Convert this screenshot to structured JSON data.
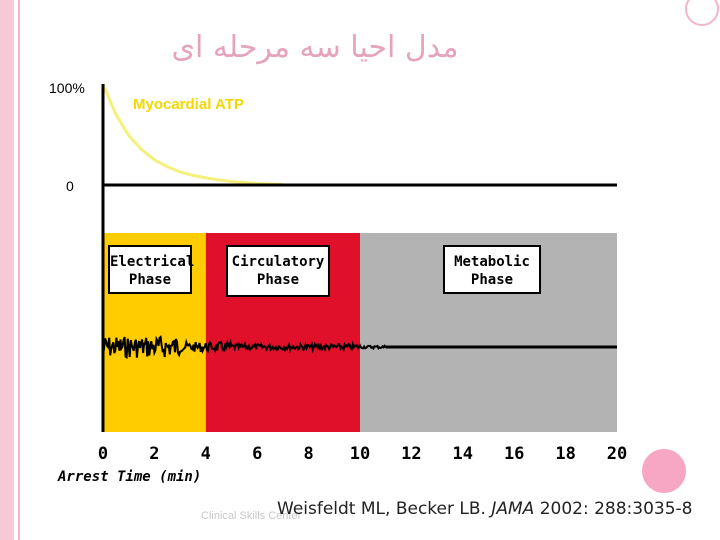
{
  "slide": {
    "title": "مدل احیا سه مرحله ای",
    "footer_text": "Clinical Skills Center",
    "citation_authors": "Weisfeldt ML, Becker LB.",
    "citation_journal": "JAMA",
    "citation_rest": "2002: 288:3035-8",
    "colors": {
      "accent_pink": "#f7a6c3",
      "title_pink": "#e6a3bd"
    }
  },
  "chart_data": {
    "type": "area",
    "title": "",
    "xlabel": "Arrest Time (min)",
    "ylabel": "",
    "x_ticks": [
      "0",
      "2",
      "4",
      "6",
      "8",
      "10",
      "12",
      "14",
      "16",
      "18",
      "20"
    ],
    "xlim": [
      0,
      20
    ],
    "atp_panel": {
      "label": "Myocardial ATP",
      "y_ticks": [
        "100%",
        "0"
      ],
      "curve_color": "#f5f07a",
      "series": {
        "name": "Myocardial ATP",
        "x": [
          0,
          0.5,
          1,
          1.5,
          2,
          2.5,
          3,
          3.5,
          4,
          4.5,
          5,
          5.5,
          6,
          6.5,
          7
        ],
        "y": [
          100,
          70,
          49,
          35,
          25,
          18,
          13,
          9.5,
          7,
          5,
          3.5,
          2.5,
          1.5,
          1,
          0.5
        ]
      }
    },
    "phases": [
      {
        "name": "Electrical Phase",
        "line1": "Electrical",
        "line2": "Phase",
        "start": 0,
        "end": 4,
        "color": "#ffcc00"
      },
      {
        "name": "Circulatory Phase",
        "line1": "Circulatory",
        "line2": "Phase",
        "start": 4,
        "end": 10,
        "color": "#e0102a"
      },
      {
        "name": "Metabolic Phase",
        "line1": "Metabolic",
        "line2": "Phase",
        "start": 10,
        "end": 20,
        "color": "#b3b3b3"
      }
    ],
    "ecg_trace": {
      "baseline_x": [
        0,
        20
      ],
      "color": "#000000"
    }
  }
}
